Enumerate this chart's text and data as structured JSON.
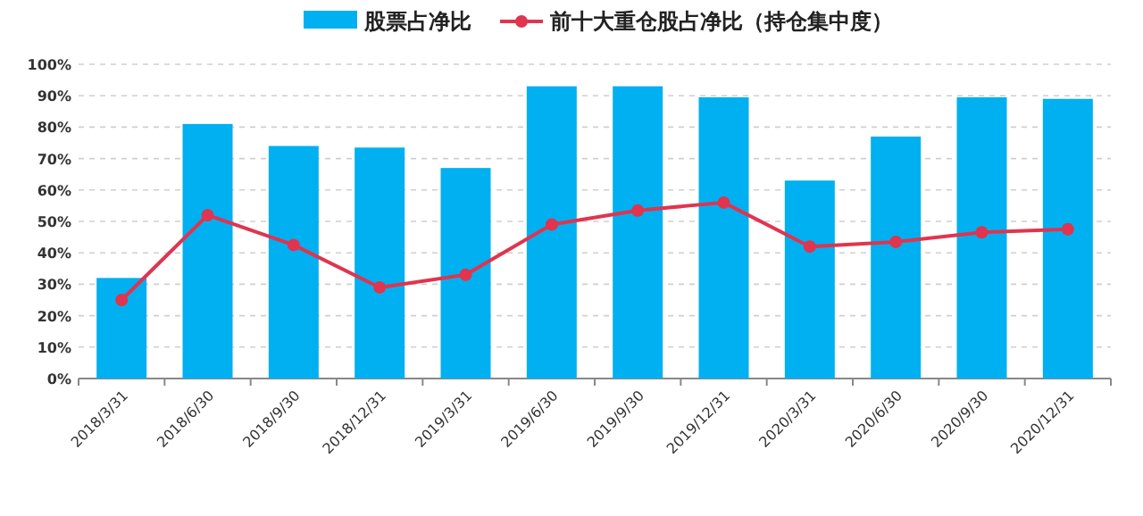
{
  "chart_data": {
    "type": "bar",
    "categories": [
      "2018/3/31",
      "2018/6/30",
      "2018/9/30",
      "2018/12/31",
      "2019/3/31",
      "2019/6/30",
      "2019/9/30",
      "2019/12/31",
      "2020/3/31",
      "2020/6/30",
      "2020/9/30",
      "2020/12/31"
    ],
    "series": [
      {
        "name": "股票占净比",
        "color": "#00b0f0",
        "values": [
          32,
          81,
          74,
          73.5,
          67,
          93,
          93,
          89.5,
          63,
          77,
          89.5,
          89
        ]
      },
      {
        "name": "前十大重仓股占净比（持仓集中度）",
        "type": "line",
        "color": "#e0344f",
        "marker": "circle",
        "values": [
          25,
          52,
          42.5,
          29,
          33,
          49,
          53.5,
          56,
          42,
          43.5,
          46.5,
          47.5
        ]
      }
    ],
    "ylim": [
      0,
      100
    ],
    "yticks": [
      {
        "value": 0,
        "label": "0%"
      },
      {
        "value": 10,
        "label": "10%"
      },
      {
        "value": 20,
        "label": "20%"
      },
      {
        "value": 30,
        "label": "30%"
      },
      {
        "value": 40,
        "label": "40%"
      },
      {
        "value": 50,
        "label": "50%"
      },
      {
        "value": 60,
        "label": "60%"
      },
      {
        "value": 70,
        "label": "70%"
      },
      {
        "value": 80,
        "label": "80%"
      },
      {
        "value": 90,
        "label": "90%"
      },
      {
        "value": 100,
        "label": "100%"
      }
    ],
    "grid": "y",
    "legend": "top"
  }
}
